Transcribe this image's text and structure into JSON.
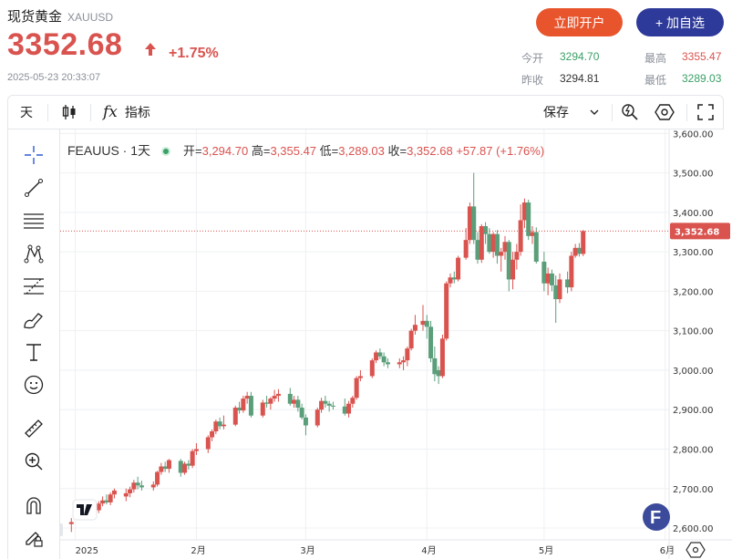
{
  "header": {
    "name": "现货黄金",
    "symbol": "XAUUSD",
    "price": "3352.68",
    "change_pct": "+1.75%",
    "timestamp": "2025-05-23 20:33:07",
    "open_account_label": "立即开户",
    "add_watch_label": "+ 加自选",
    "stats": {
      "open_label": "今开",
      "open_value": "3294.70",
      "prev_close_label": "昨收",
      "prev_close_value": "3294.81",
      "high_label": "最高",
      "high_value": "3355.47",
      "low_label": "最低",
      "low_value": "3289.03"
    }
  },
  "toolbar": {
    "interval_label": "天",
    "indicators_label": "指标",
    "save_label": "保存"
  },
  "legend": {
    "symbol": "FEAUUS · 1天",
    "open_key": "开=",
    "open_val": "3,294.70",
    "high_key": "高=",
    "high_val": "3,355.47",
    "low_key": "低=",
    "low_val": "3,289.03",
    "close_key": "收=",
    "close_val": "3,352.68",
    "change_val": "+57.87 (+1.76%)"
  },
  "colors": {
    "up_candle": "#d9534f",
    "down_candle": "#5a9e7a",
    "brand_orange": "#e8552d",
    "brand_navy": "#2e3a99"
  },
  "chart_data": {
    "type": "candlestick",
    "ylim": [
      2570,
      3610
    ],
    "yticks": [
      "3,600.00",
      "3,500.00",
      "3,400.00",
      "3,300.00",
      "3,200.00",
      "3,100.00",
      "3,000.00",
      "2,900.00",
      "2,800.00",
      "2,700.00",
      "2,600.00"
    ],
    "ytick_values": [
      3600,
      3500,
      3400,
      3300,
      3200,
      3100,
      3000,
      2900,
      2800,
      2700,
      2600
    ],
    "xticks": [
      "2025",
      "2月",
      "3月",
      "4月",
      "5月",
      "6月"
    ],
    "xtick_days": [
      0,
      31,
      59,
      90,
      120,
      151
    ],
    "xlim_days": [
      -2,
      152
    ],
    "last_price_label": "3,352.68",
    "last_price": 3352.68,
    "candles": [
      [
        -1,
        2610,
        2625,
        2590,
        2615
      ],
      [
        1,
        2640,
        2660,
        2625,
        2655
      ],
      [
        2,
        2655,
        2665,
        2640,
        2648
      ],
      [
        3,
        2640,
        2655,
        2630,
        2650
      ],
      [
        6,
        2645,
        2668,
        2638,
        2662
      ],
      [
        7,
        2662,
        2680,
        2655,
        2670
      ],
      [
        8,
        2670,
        2685,
        2660,
        2665
      ],
      [
        9,
        2665,
        2690,
        2658,
        2685
      ],
      [
        10,
        2685,
        2700,
        2675,
        2695
      ],
      [
        13,
        2680,
        2700,
        2668,
        2688
      ],
      [
        14,
        2688,
        2705,
        2678,
        2698
      ],
      [
        15,
        2698,
        2722,
        2690,
        2715
      ],
      [
        16,
        2715,
        2730,
        2698,
        2708
      ],
      [
        17,
        2708,
        2720,
        2695,
        2703
      ],
      [
        20,
        2703,
        2718,
        2695,
        2710
      ],
      [
        21,
        2710,
        2745,
        2705,
        2742
      ],
      [
        22,
        2742,
        2765,
        2735,
        2756
      ],
      [
        23,
        2756,
        2768,
        2742,
        2750
      ],
      [
        24,
        2750,
        2775,
        2740,
        2772
      ],
      [
        27,
        2770,
        2775,
        2730,
        2740
      ],
      [
        28,
        2740,
        2768,
        2735,
        2763
      ],
      [
        29,
        2763,
        2772,
        2748,
        2758
      ],
      [
        30,
        2758,
        2800,
        2752,
        2795
      ],
      [
        31,
        2795,
        2815,
        2785,
        2800
      ],
      [
        34,
        2800,
        2835,
        2790,
        2830
      ],
      [
        35,
        2830,
        2850,
        2820,
        2845
      ],
      [
        36,
        2845,
        2875,
        2838,
        2870
      ],
      [
        37,
        2870,
        2880,
        2850,
        2858
      ],
      [
        38,
        2858,
        2885,
        2850,
        2862
      ],
      [
        41,
        2862,
        2910,
        2858,
        2905
      ],
      [
        42,
        2905,
        2920,
        2890,
        2898
      ],
      [
        43,
        2898,
        2935,
        2892,
        2928
      ],
      [
        44,
        2928,
        2945,
        2915,
        2935
      ],
      [
        45,
        2935,
        2945,
        2880,
        2885
      ],
      [
        48,
        2885,
        2925,
        2880,
        2918
      ],
      [
        49,
        2918,
        2935,
        2905,
        2915
      ],
      [
        50,
        2915,
        2932,
        2900,
        2928
      ],
      [
        51,
        2928,
        2950,
        2920,
        2935
      ],
      [
        52,
        2935,
        2952,
        2920,
        2940
      ],
      [
        55,
        2940,
        2955,
        2910,
        2915
      ],
      [
        56,
        2915,
        2935,
        2905,
        2925
      ],
      [
        57,
        2925,
        2935,
        2895,
        2905
      ],
      [
        58,
        2905,
        2915,
        2875,
        2880
      ],
      [
        59,
        2880,
        2888,
        2835,
        2860
      ],
      [
        62,
        2860,
        2905,
        2855,
        2900
      ],
      [
        63,
        2900,
        2930,
        2892,
        2922
      ],
      [
        64,
        2922,
        2935,
        2905,
        2915
      ],
      [
        65,
        2915,
        2922,
        2895,
        2910
      ],
      [
        66,
        2910,
        2920,
        2900,
        2908
      ],
      [
        69,
        2908,
        2928,
        2885,
        2890
      ],
      [
        70,
        2890,
        2922,
        2880,
        2915
      ],
      [
        71,
        2915,
        2935,
        2905,
        2930
      ],
      [
        72,
        2930,
        2985,
        2925,
        2980
      ],
      [
        73,
        2980,
        3000,
        2972,
        2985
      ],
      [
        76,
        2985,
        3030,
        2980,
        3025
      ],
      [
        77,
        3025,
        3050,
        3018,
        3045
      ],
      [
        78,
        3045,
        3055,
        3028,
        3035
      ],
      [
        79,
        3035,
        3045,
        3010,
        3020
      ],
      [
        80,
        3020,
        3030,
        3005,
        3015
      ],
      [
        83,
        3015,
        3030,
        3005,
        3020
      ],
      [
        84,
        3020,
        3035,
        3000,
        3025
      ],
      [
        85,
        3025,
        3060,
        3010,
        3055
      ],
      [
        86,
        3055,
        3105,
        3050,
        3100
      ],
      [
        87,
        3100,
        3140,
        3090,
        3115
      ],
      [
        89,
        3115,
        3165,
        3100,
        3125
      ],
      [
        90,
        3125,
        3140,
        3080,
        3110
      ],
      [
        91,
        3110,
        3125,
        3020,
        3030
      ],
      [
        92,
        3030,
        3060,
        2972,
        2990
      ],
      [
        93,
        3000,
        3010,
        2965,
        2985
      ],
      [
        94,
        2985,
        3090,
        2980,
        3080
      ],
      [
        95,
        3080,
        3225,
        3075,
        3220
      ],
      [
        96,
        3220,
        3245,
        3210,
        3235
      ],
      [
        97,
        3235,
        3250,
        3220,
        3230
      ],
      [
        98,
        3230,
        3290,
        3225,
        3285
      ],
      [
        100,
        3285,
        3360,
        3280,
        3330
      ],
      [
        101,
        3330,
        3425,
        3320,
        3415
      ],
      [
        102,
        3415,
        3500,
        3320,
        3330
      ],
      [
        103,
        3330,
        3350,
        3270,
        3280
      ],
      [
        104,
        3280,
        3370,
        3272,
        3365
      ],
      [
        105,
        3365,
        3375,
        3320,
        3345
      ],
      [
        106,
        3345,
        3360,
        3295,
        3300
      ],
      [
        107,
        3300,
        3350,
        3285,
        3345
      ],
      [
        108,
        3345,
        3355,
        3270,
        3290
      ],
      [
        109,
        3290,
        3310,
        3250,
        3300
      ],
      [
        110,
        3300,
        3340,
        3280,
        3325
      ],
      [
        111,
        3325,
        3330,
        3200,
        3230
      ],
      [
        112,
        3230,
        3300,
        3205,
        3280
      ],
      [
        113,
        3280,
        3320,
        3255,
        3300
      ],
      [
        114,
        3300,
        3420,
        3290,
        3380
      ],
      [
        115,
        3380,
        3435,
        3360,
        3425
      ],
      [
        116,
        3425,
        3432,
        3330,
        3340
      ],
      [
        117,
        3340,
        3365,
        3320,
        3350
      ],
      [
        118,
        3350,
        3362,
        3270,
        3275
      ],
      [
        120,
        3275,
        3300,
        3200,
        3220
      ],
      [
        121,
        3220,
        3260,
        3190,
        3245
      ],
      [
        122,
        3245,
        3255,
        3200,
        3215
      ],
      [
        123,
        3215,
        3240,
        3120,
        3180
      ],
      [
        124,
        3180,
        3245,
        3170,
        3230
      ],
      [
        126,
        3230,
        3250,
        3195,
        3210
      ],
      [
        127,
        3210,
        3300,
        3200,
        3290
      ],
      [
        128,
        3290,
        3320,
        3285,
        3310
      ],
      [
        129,
        3310,
        3322,
        3288,
        3295
      ],
      [
        130,
        3294.7,
        3355.47,
        3289.03,
        3352.68
      ]
    ]
  }
}
